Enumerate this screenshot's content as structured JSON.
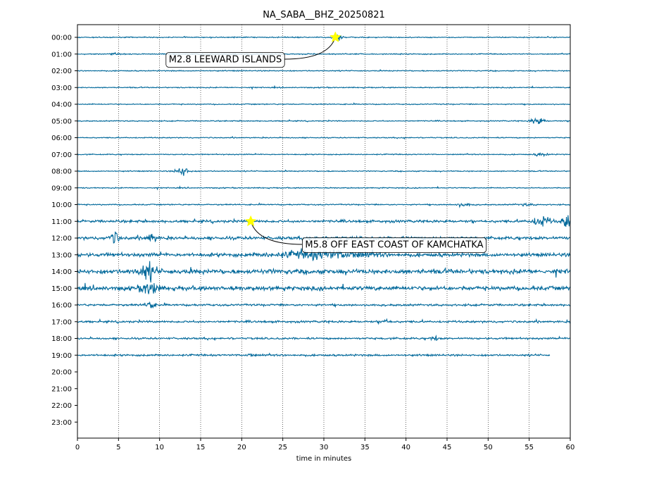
{
  "chart_data": {
    "type": "line",
    "title": "NA_SABA__BHZ_20250821",
    "xlabel": "time in minutes",
    "ylabel": "",
    "xlim": [
      0,
      60
    ],
    "x_ticks": [
      "0",
      "5",
      "10",
      "15",
      "20",
      "25",
      "30",
      "35",
      "40",
      "45",
      "50",
      "55",
      "60"
    ],
    "y_tick_labels": [
      "00:00",
      "01:00",
      "02:00",
      "03:00",
      "04:00",
      "05:00",
      "06:00",
      "07:00",
      "08:00",
      "09:00",
      "10:00",
      "11:00",
      "12:00",
      "13:00",
      "14:00",
      "15:00",
      "16:00",
      "17:00",
      "18:00",
      "19:00",
      "20:00",
      "21:00",
      "22:00",
      "23:00"
    ],
    "grid": "vertical dotted lines",
    "trace_color": "#00689a",
    "marker_color": "#ffff00",
    "last_trace_end_minute": 57.5,
    "traces": [
      {
        "hour": "00:00",
        "base_amplitude": 1.0,
        "bursts": [
          {
            "minute": 31.8,
            "amplitude": 6,
            "duration": 1.2
          }
        ]
      },
      {
        "hour": "01:00",
        "base_amplitude": 1.0,
        "bursts": [
          {
            "minute": 4.5,
            "amplitude": 2,
            "duration": 1
          }
        ]
      },
      {
        "hour": "02:00",
        "base_amplitude": 1.0,
        "bursts": []
      },
      {
        "hour": "03:00",
        "base_amplitude": 1.0,
        "bursts": []
      },
      {
        "hour": "04:00",
        "base_amplitude": 1.0,
        "bursts": []
      },
      {
        "hour": "05:00",
        "base_amplitude": 1.0,
        "bursts": [
          {
            "minute": 56.0,
            "amplitude": 8,
            "duration": 1.5
          }
        ]
      },
      {
        "hour": "06:00",
        "base_amplitude": 1.0,
        "bursts": []
      },
      {
        "hour": "07:00",
        "base_amplitude": 1.0,
        "bursts": [
          {
            "minute": 56.5,
            "amplitude": 3,
            "duration": 1.5
          }
        ]
      },
      {
        "hour": "08:00",
        "base_amplitude": 1.0,
        "bursts": [
          {
            "minute": 12.8,
            "amplitude": 10,
            "duration": 1.5
          }
        ]
      },
      {
        "hour": "09:00",
        "base_amplitude": 1.0,
        "bursts": []
      },
      {
        "hour": "10:00",
        "base_amplitude": 1.2,
        "bursts": [
          {
            "minute": 47.0,
            "amplitude": 3,
            "duration": 2
          },
          {
            "minute": 54.5,
            "amplitude": 2,
            "duration": 2
          }
        ]
      },
      {
        "hour": "11:00",
        "base_amplitude": 2.5,
        "bursts": [
          {
            "minute": 56.5,
            "amplitude": 10,
            "duration": 2
          },
          {
            "minute": 59.5,
            "amplitude": 14,
            "duration": 1
          }
        ]
      },
      {
        "hour": "12:00",
        "base_amplitude": 3.0,
        "bursts": [
          {
            "minute": 4.5,
            "amplitude": 12,
            "duration": 1
          },
          {
            "minute": 9.0,
            "amplitude": 10,
            "duration": 1
          }
        ]
      },
      {
        "hour": "13:00",
        "base_amplitude": 3.5,
        "bursts": [
          {
            "minute": 30.0,
            "amplitude": 8,
            "duration": 10
          }
        ]
      },
      {
        "hour": "14:00",
        "base_amplitude": 4.5,
        "bursts": [
          {
            "minute": 8.5,
            "amplitude": 14,
            "duration": 2
          }
        ]
      },
      {
        "hour": "15:00",
        "base_amplitude": 4.0,
        "bursts": [
          {
            "minute": 8.8,
            "amplitude": 12,
            "duration": 2
          }
        ]
      },
      {
        "hour": "16:00",
        "base_amplitude": 2.0,
        "bursts": [
          {
            "minute": 8.8,
            "amplitude": 8,
            "duration": 1
          }
        ]
      },
      {
        "hour": "17:00",
        "base_amplitude": 2.0,
        "bursts": [
          {
            "minute": 37.5,
            "amplitude": 4,
            "duration": 1
          }
        ]
      },
      {
        "hour": "18:00",
        "base_amplitude": 1.8,
        "bursts": [
          {
            "minute": 43.5,
            "amplitude": 4,
            "duration": 1
          }
        ]
      },
      {
        "hour": "19:00",
        "base_amplitude": 1.8,
        "bursts": [
          {
            "minute": 21.0,
            "amplitude": 3,
            "duration": 1
          }
        ]
      }
    ],
    "events": [
      {
        "label": "M2.8 LEEWARD ISLANDS",
        "hour": "00:00",
        "minute": 31.4
      },
      {
        "label": "M5.8 OFF EAST COAST OF KAMCHATKA",
        "hour": "11:00",
        "minute": 21.1
      }
    ]
  }
}
